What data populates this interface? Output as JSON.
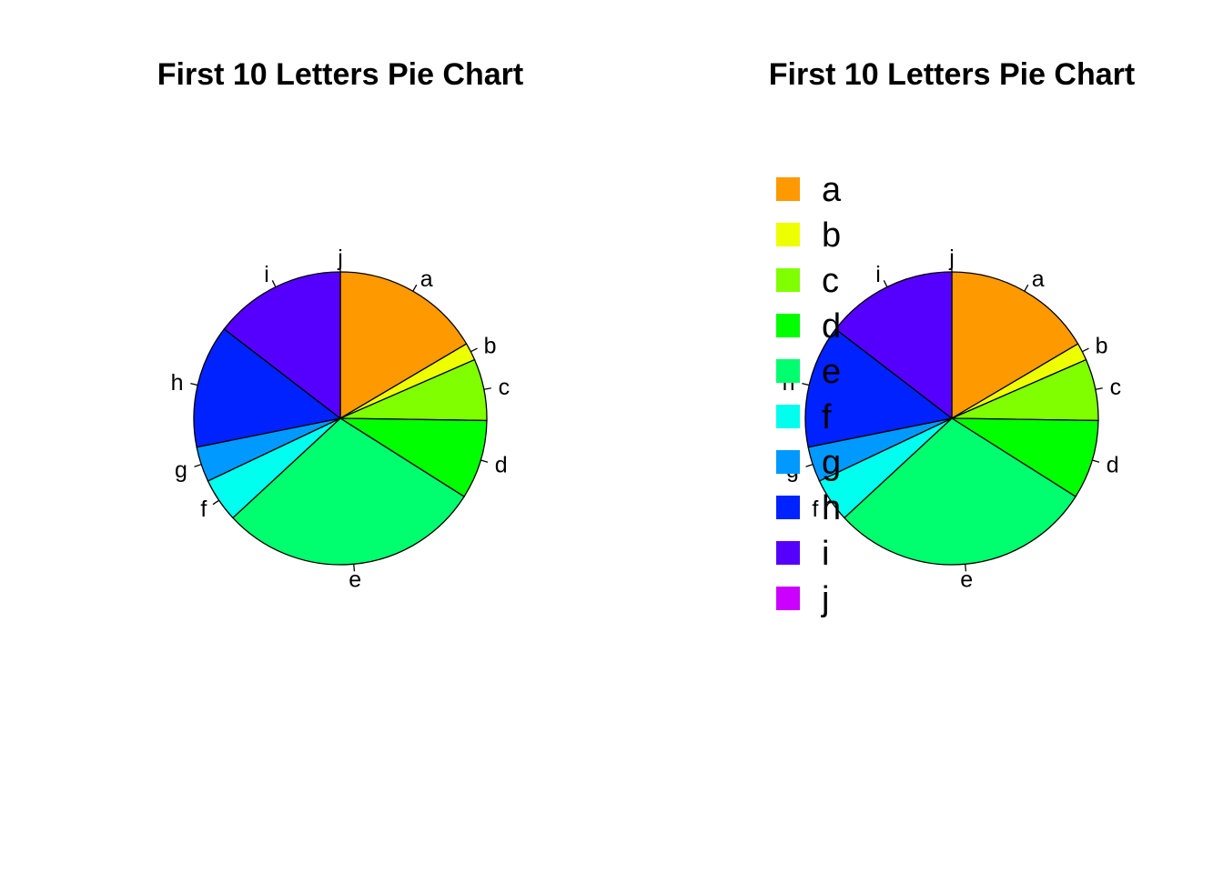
{
  "chart_data": [
    {
      "type": "pie",
      "title": "First 10 Letters Pie Chart",
      "direction": "clockwise",
      "start": "top",
      "legend": "none",
      "categories": [
        "a",
        "b",
        "c",
        "d",
        "e",
        "f",
        "g",
        "h",
        "i",
        "j"
      ],
      "values": [
        17,
        2,
        7,
        9,
        30,
        5,
        4,
        14,
        15,
        0
      ],
      "colors": [
        "#FF9900",
        "#EEFF00",
        "#80FF00",
        "#00FF00",
        "#00FF6E",
        "#00FFEE",
        "#0099FF",
        "#0022FF",
        "#5500FF",
        "#CC00FF"
      ]
    },
    {
      "type": "pie",
      "title": "First 10 Letters Pie Chart",
      "direction": "clockwise",
      "start": "top",
      "legend": "top-left",
      "categories": [
        "a",
        "b",
        "c",
        "d",
        "e",
        "f",
        "g",
        "h",
        "i",
        "j"
      ],
      "values": [
        17,
        2,
        7,
        9,
        30,
        5,
        4,
        14,
        15,
        0
      ],
      "colors": [
        "#FF9900",
        "#EEFF00",
        "#80FF00",
        "#00FF00",
        "#00FF6E",
        "#00FFEE",
        "#0099FF",
        "#0022FF",
        "#5500FF",
        "#CC00FF"
      ],
      "legend_entries": [
        "a",
        "b",
        "c",
        "d",
        "e",
        "f",
        "g",
        "h",
        "i",
        "j"
      ]
    }
  ]
}
